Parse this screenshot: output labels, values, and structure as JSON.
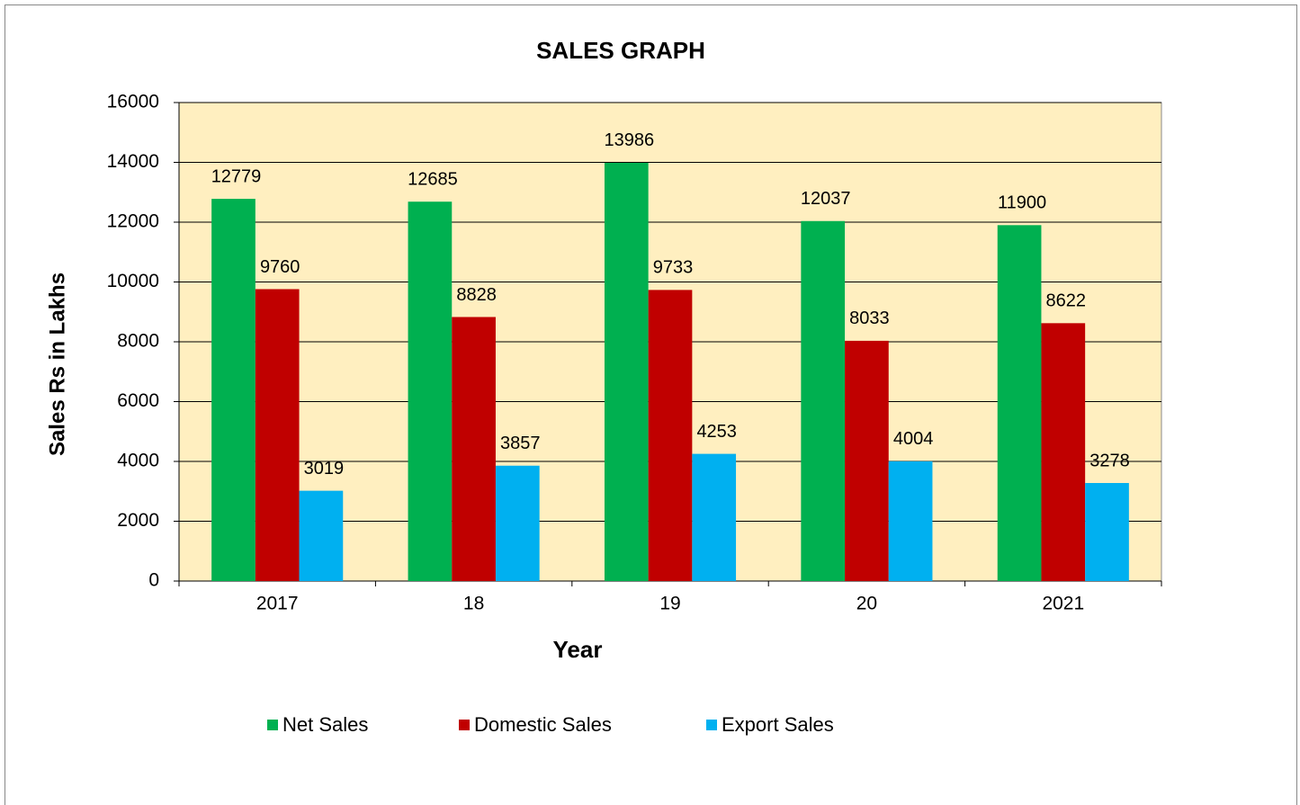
{
  "chart_data": {
    "type": "bar",
    "title": "SALES GRAPH",
    "x_label": "Year",
    "y_label": "Sales Rs in Lakhs",
    "categories": [
      "2017",
      "18",
      "19",
      "20",
      "2021"
    ],
    "series": [
      {
        "name": "Net Sales",
        "color": "#00b050",
        "values": [
          12779,
          12685,
          13986,
          12037,
          11900
        ]
      },
      {
        "name": "Domestic Sales",
        "color": "#c00000",
        "values": [
          9760,
          8828,
          9733,
          8033,
          8622
        ]
      },
      {
        "name": "Export Sales",
        "color": "#00b0f0",
        "values": [
          3019,
          3857,
          4253,
          4004,
          3278
        ]
      }
    ],
    "ylim": [
      0,
      16000
    ],
    "yticks": [
      0,
      2000,
      4000,
      6000,
      8000,
      10000,
      12000,
      14000,
      16000
    ],
    "grid": true,
    "legend": "bottom"
  }
}
